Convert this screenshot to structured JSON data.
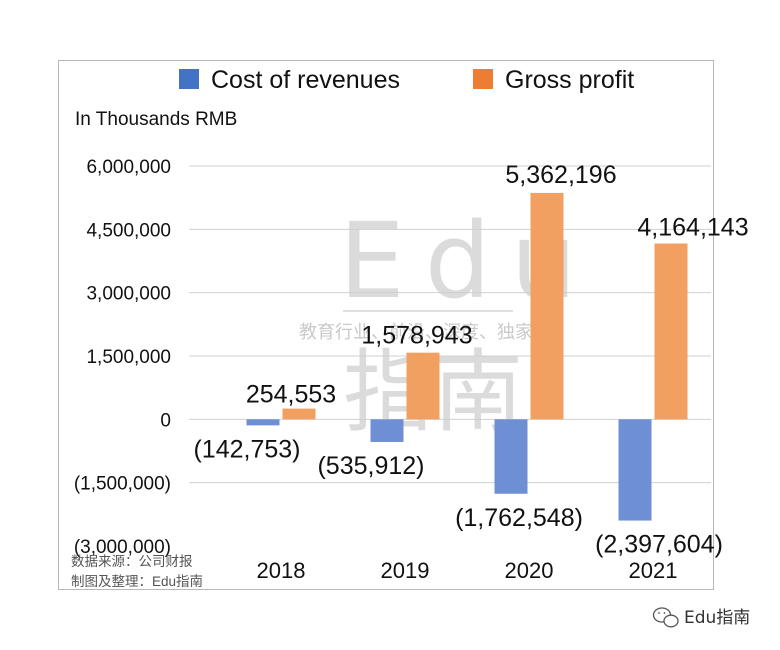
{
  "chart_data": {
    "type": "bar",
    "unit_label": "In Thousands RMB",
    "categories": [
      "2018",
      "2019",
      "2020",
      "2021"
    ],
    "series": [
      {
        "name": "Cost of revenues",
        "color": "#4472c4",
        "values": [
          -142753,
          -535912,
          -1762548,
          -2397604
        ],
        "labels": [
          "(142,753)",
          "(535,912)",
          "(1,762,548)",
          "(2,397,604)"
        ]
      },
      {
        "name": "Gross profit",
        "color": "#ed7d31",
        "values": [
          254553,
          1578943,
          5362196,
          4164143
        ],
        "labels": [
          "254,553",
          "1,578,943",
          "5,362,196",
          "4,164,143"
        ]
      }
    ],
    "ylim": [
      -3000000,
      6000000
    ],
    "yticks": [
      6000000,
      4500000,
      3000000,
      1500000,
      0,
      -1500000,
      -3000000
    ],
    "ytick_labels": [
      "6,000,000",
      "4,500,000",
      "3,000,000",
      "1,500,000",
      "0",
      "(1,500,000)",
      "(3,000,000)"
    ],
    "grid": true,
    "legend": "top"
  },
  "source": {
    "line1": "数据来源：公司财报",
    "line2": "制图及整理：Edu指南"
  },
  "watermark": {
    "latin": "Edu",
    "cjk": "指南",
    "tagline": "教育行业、前沿、深度、独家"
  },
  "brand": {
    "icon": "wechat-icon",
    "text": "Edu指南"
  }
}
